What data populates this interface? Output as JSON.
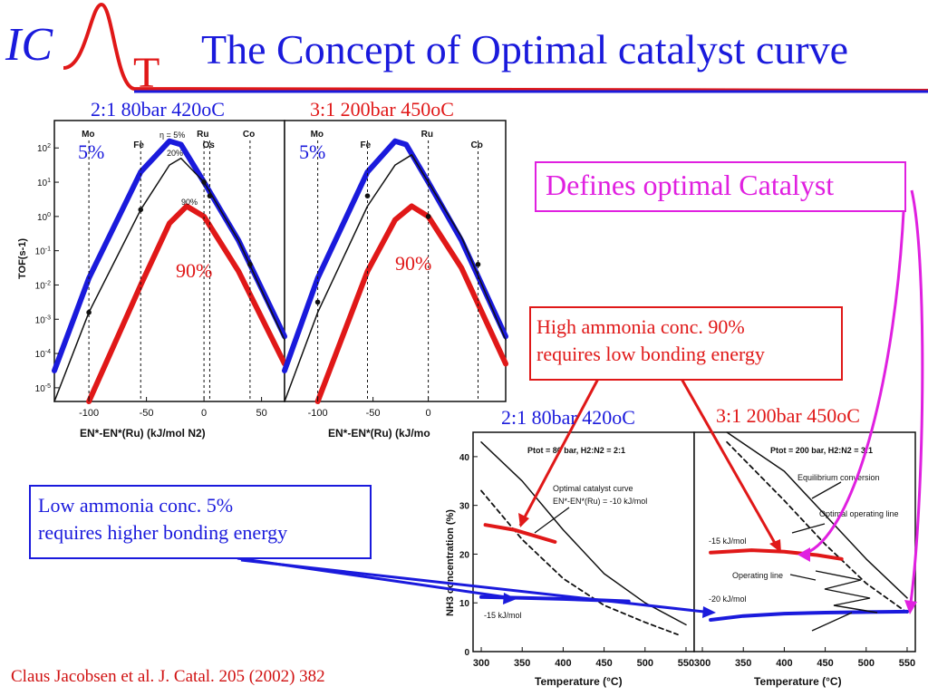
{
  "header": {
    "logo_ic": "IC",
    "logo_t": "T",
    "title": "The Concept of Optimal catalyst curve"
  },
  "citation": "Claus Jacobsen et al. J. Catal. 205 (2002) 382",
  "annotations": {
    "upper_left_condition": "2:1 80bar 420oC",
    "upper_right_condition": "3:1 200bar 450oC",
    "lower_left_condition": "2:1 80bar 420oC",
    "lower_right_condition": "3:1 200bar 450oC",
    "five_pct_left": "5%",
    "five_pct_right": "5%",
    "ninety_pct_left": "90%",
    "ninety_pct_right": "90%",
    "defines_box": "Defines optimal Catalyst",
    "high_box_line1": "High ammonia conc. 90%",
    "high_box_line2": "requires low bonding energy",
    "low_box_line1": "Low ammonia conc. 5%",
    "low_box_line2": "requires higher bonding energy"
  },
  "colors": {
    "blue": "#1a1adc",
    "red": "#e01818",
    "magenta": "#e020e0",
    "black": "#111111"
  },
  "chart_data": [
    {
      "type": "line",
      "title": "",
      "xlabel": "EN*-EN*(Ru) (kJ/mol N2)",
      "ylabel": "TOF(s-1)",
      "xticks": [
        "-100",
        "-50",
        "0",
        "50"
      ],
      "yticks": [
        "10^2",
        "10^1",
        "10^0",
        "10^-1",
        "10^-2",
        "10^-3",
        "10^-4",
        "10^-5"
      ],
      "yscale": "log",
      "xlim": [
        -130,
        70
      ],
      "ylim": [
        -5.4,
        2.8
      ],
      "annotations": [
        "η = 5%",
        "20%",
        "90%"
      ],
      "metals": [
        {
          "name": "Mo",
          "x": -100,
          "y": -2.8
        },
        {
          "name": "Fe",
          "x": -55,
          "y": 0.2
        },
        {
          "name": "Ru",
          "x": 0,
          "y": 1.0
        },
        {
          "name": "Os",
          "x": 5,
          "y": 0.6
        },
        {
          "name": "Co",
          "x": 40,
          "y": -1.4
        }
      ],
      "series": [
        {
          "name": "5%",
          "x": [
            -130,
            -100,
            -55,
            -30,
            -20,
            0,
            30,
            70
          ],
          "y": [
            -4.5,
            -1.8,
            1.3,
            2.2,
            2.1,
            1.0,
            -0.7,
            -3.5
          ]
        },
        {
          "name": "20%",
          "x": [
            -130,
            -100,
            -55,
            -30,
            -20,
            0,
            30,
            70
          ],
          "y": [
            -5.4,
            -2.8,
            0.2,
            1.5,
            1.7,
            1.0,
            -0.7,
            -3.6
          ]
        },
        {
          "name": "90%",
          "x": [
            -100,
            -55,
            -30,
            -15,
            0,
            30,
            70
          ],
          "y": [
            -5.4,
            -2.0,
            -0.2,
            0.3,
            0.0,
            -1.6,
            -4.3
          ]
        }
      ]
    },
    {
      "type": "line",
      "title": "",
      "xlabel": "EN*-EN*(Ru) (kJ/mo",
      "ylabel": "",
      "xticks": [
        "-100",
        "-50",
        "0"
      ],
      "yscale": "log",
      "xlim": [
        -130,
        70
      ],
      "ylim": [
        -5.4,
        2.8
      ],
      "metals": [
        {
          "name": "Mo",
          "x": -100,
          "y": -2.5
        },
        {
          "name": "Fe",
          "x": -55,
          "y": 0.6
        },
        {
          "name": "Ru",
          "x": 0,
          "y": 0.0
        },
        {
          "name": "Co",
          "x": 45,
          "y": -1.4
        }
      ],
      "series": [
        {
          "name": "5%",
          "x": [
            -130,
            -100,
            -55,
            -30,
            -20,
            0,
            30,
            70
          ],
          "y": [
            -4.5,
            -1.8,
            1.3,
            2.2,
            2.1,
            1.0,
            -0.7,
            -3.5
          ]
        },
        {
          "name": "black",
          "x": [
            -130,
            -100,
            -55,
            -30,
            -15,
            0,
            30,
            70
          ],
          "y": [
            -5.4,
            -2.8,
            0.3,
            1.5,
            1.8,
            1.0,
            -0.6,
            -3.6
          ]
        },
        {
          "name": "90%",
          "x": [
            -100,
            -55,
            -30,
            -15,
            0,
            30,
            70
          ],
          "y": [
            -5.4,
            -1.6,
            -0.1,
            0.3,
            0.0,
            -1.5,
            -4.3
          ]
        }
      ]
    },
    {
      "type": "line",
      "title": "Ptot = 80 bar, H2:N2 = 2:1",
      "xlabel": "Temperature (°C)",
      "ylabel": "NH3 concentration (%)",
      "xticks": [
        "300",
        "350",
        "400",
        "450",
        "500",
        "550"
      ],
      "yticks": [
        "0",
        "10",
        "20",
        "30",
        "40"
      ],
      "xlim": [
        290,
        560
      ],
      "ylim": [
        0,
        45
      ],
      "annotations": [
        "Optimal catalyst curve",
        "EN*-EN*(Ru) = -10 kJ/mol",
        "-15 kJ/mol"
      ],
      "series": [
        {
          "name": "equilibrium",
          "x": [
            300,
            350,
            400,
            450,
            500,
            550
          ],
          "y": [
            43,
            35,
            25,
            16,
            10,
            5.5
          ]
        },
        {
          "name": "dashed",
          "x": [
            300,
            350,
            400,
            450,
            500,
            540
          ],
          "y": [
            33,
            23,
            15,
            9.5,
            6,
            3.5
          ]
        },
        {
          "name": "-10 kJ/mol",
          "x": [
            305,
            340,
            360,
            390
          ],
          "y": [
            26,
            25,
            24,
            22.5
          ]
        },
        {
          "name": "-15 kJ/mol",
          "x": [
            300,
            350,
            400,
            450,
            480
          ],
          "y": [
            11.2,
            11.0,
            10.8,
            10.5,
            10.3
          ]
        }
      ]
    },
    {
      "type": "line",
      "title": "Ptot = 200 bar, H2:N2 = 3:1",
      "xlabel": "Temperature (°C)",
      "xticks": [
        "300",
        "350",
        "400",
        "450",
        "500",
        "550"
      ],
      "xlim": [
        290,
        560
      ],
      "ylim": [
        0,
        45
      ],
      "annotations": [
        "Equilibrium conversion",
        "Optimal operating line",
        "-15 kJ/mol",
        "Operating line",
        "-20 kJ/mol"
      ],
      "series": [
        {
          "name": "equilibrium",
          "x": [
            330,
            400,
            450,
            500,
            550
          ],
          "y": [
            45,
            37,
            28,
            19,
            11
          ]
        },
        {
          "name": "dashed",
          "x": [
            330,
            400,
            450,
            500,
            550
          ],
          "y": [
            43,
            31,
            22,
            14,
            8
          ]
        },
        {
          "name": "-15 kJ/mol",
          "x": [
            310,
            360,
            400,
            440,
            470
          ],
          "y": [
            20.3,
            20.8,
            20.5,
            19.8,
            19.0
          ]
        },
        {
          "name": "-20 kJ/mol",
          "x": [
            310,
            350,
            400,
            450,
            500,
            550
          ],
          "y": [
            6.5,
            7.3,
            7.8,
            8.0,
            8.1,
            8.2
          ]
        }
      ]
    }
  ]
}
